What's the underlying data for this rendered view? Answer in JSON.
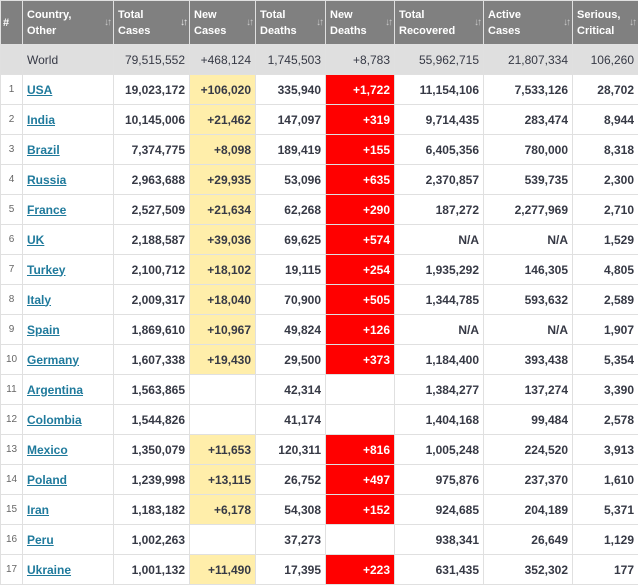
{
  "headers": {
    "idx": "#",
    "country": [
      "Country,",
      "Other"
    ],
    "total_cases": [
      "Total",
      "Cases"
    ],
    "new_cases": [
      "New",
      "Cases"
    ],
    "total_deaths": [
      "Total",
      "Deaths"
    ],
    "new_deaths": [
      "New",
      "Deaths"
    ],
    "total_recovered": [
      "Total",
      "Recovered"
    ],
    "active_cases": [
      "Active",
      "Cases"
    ],
    "serious": [
      "Serious,",
      "Critical"
    ]
  },
  "world": {
    "country": "World",
    "total_cases": "79,515,552",
    "new_cases": "+468,124",
    "total_deaths": "1,745,503",
    "new_deaths": "+8,783",
    "total_recovered": "55,962,715",
    "active_cases": "21,807,334",
    "serious": "106,260"
  },
  "rows": [
    {
      "idx": "1",
      "country": "USA",
      "total_cases": "19,023,172",
      "new_cases": "+106,020",
      "total_deaths": "335,940",
      "new_deaths": "+1,722",
      "total_recovered": "11,154,106",
      "active_cases": "7,533,126",
      "serious": "28,702"
    },
    {
      "idx": "2",
      "country": "India",
      "total_cases": "10,145,006",
      "new_cases": "+21,462",
      "total_deaths": "147,097",
      "new_deaths": "+319",
      "total_recovered": "9,714,435",
      "active_cases": "283,474",
      "serious": "8,944"
    },
    {
      "idx": "3",
      "country": "Brazil",
      "total_cases": "7,374,775",
      "new_cases": "+8,098",
      "total_deaths": "189,419",
      "new_deaths": "+155",
      "total_recovered": "6,405,356",
      "active_cases": "780,000",
      "serious": "8,318"
    },
    {
      "idx": "4",
      "country": "Russia",
      "total_cases": "2,963,688",
      "new_cases": "+29,935",
      "total_deaths": "53,096",
      "new_deaths": "+635",
      "total_recovered": "2,370,857",
      "active_cases": "539,735",
      "serious": "2,300"
    },
    {
      "idx": "5",
      "country": "France",
      "total_cases": "2,527,509",
      "new_cases": "+21,634",
      "total_deaths": "62,268",
      "new_deaths": "+290",
      "total_recovered": "187,272",
      "active_cases": "2,277,969",
      "serious": "2,710"
    },
    {
      "idx": "6",
      "country": "UK",
      "total_cases": "2,188,587",
      "new_cases": "+39,036",
      "total_deaths": "69,625",
      "new_deaths": "+574",
      "total_recovered": "N/A",
      "active_cases": "N/A",
      "serious": "1,529"
    },
    {
      "idx": "7",
      "country": "Turkey",
      "total_cases": "2,100,712",
      "new_cases": "+18,102",
      "total_deaths": "19,115",
      "new_deaths": "+254",
      "total_recovered": "1,935,292",
      "active_cases": "146,305",
      "serious": "4,805"
    },
    {
      "idx": "8",
      "country": "Italy",
      "total_cases": "2,009,317",
      "new_cases": "+18,040",
      "total_deaths": "70,900",
      "new_deaths": "+505",
      "total_recovered": "1,344,785",
      "active_cases": "593,632",
      "serious": "2,589"
    },
    {
      "idx": "9",
      "country": "Spain",
      "total_cases": "1,869,610",
      "new_cases": "+10,967",
      "total_deaths": "49,824",
      "new_deaths": "+126",
      "total_recovered": "N/A",
      "active_cases": "N/A",
      "serious": "1,907"
    },
    {
      "idx": "10",
      "country": "Germany",
      "total_cases": "1,607,338",
      "new_cases": "+19,430",
      "total_deaths": "29,500",
      "new_deaths": "+373",
      "total_recovered": "1,184,400",
      "active_cases": "393,438",
      "serious": "5,354"
    },
    {
      "idx": "11",
      "country": "Argentina",
      "total_cases": "1,563,865",
      "new_cases": "",
      "total_deaths": "42,314",
      "new_deaths": "",
      "total_recovered": "1,384,277",
      "active_cases": "137,274",
      "serious": "3,390"
    },
    {
      "idx": "12",
      "country": "Colombia",
      "total_cases": "1,544,826",
      "new_cases": "",
      "total_deaths": "41,174",
      "new_deaths": "",
      "total_recovered": "1,404,168",
      "active_cases": "99,484",
      "serious": "2,578"
    },
    {
      "idx": "13",
      "country": "Mexico",
      "total_cases": "1,350,079",
      "new_cases": "+11,653",
      "total_deaths": "120,311",
      "new_deaths": "+816",
      "total_recovered": "1,005,248",
      "active_cases": "224,520",
      "serious": "3,913"
    },
    {
      "idx": "14",
      "country": "Poland",
      "total_cases": "1,239,998",
      "new_cases": "+13,115",
      "total_deaths": "26,752",
      "new_deaths": "+497",
      "total_recovered": "975,876",
      "active_cases": "237,370",
      "serious": "1,610"
    },
    {
      "idx": "15",
      "country": "Iran",
      "total_cases": "1,183,182",
      "new_cases": "+6,178",
      "total_deaths": "54,308",
      "new_deaths": "+152",
      "total_recovered": "924,685",
      "active_cases": "204,189",
      "serious": "5,371"
    },
    {
      "idx": "16",
      "country": "Peru",
      "total_cases": "1,002,263",
      "new_cases": "",
      "total_deaths": "37,273",
      "new_deaths": "",
      "total_recovered": "938,341",
      "active_cases": "26,649",
      "serious": "1,129"
    },
    {
      "idx": "17",
      "country": "Ukraine",
      "total_cases": "1,001,132",
      "new_cases": "+11,490",
      "total_deaths": "17,395",
      "new_deaths": "+223",
      "total_recovered": "631,435",
      "active_cases": "352,302",
      "serious": "177"
    }
  ],
  "colors": {
    "header_bg": "#808080",
    "world_row_bg": "#dfdfdf",
    "new_cases_bg": "#ffeeaa",
    "new_deaths_bg": "#ff0000",
    "link": "#1f7a9c"
  }
}
